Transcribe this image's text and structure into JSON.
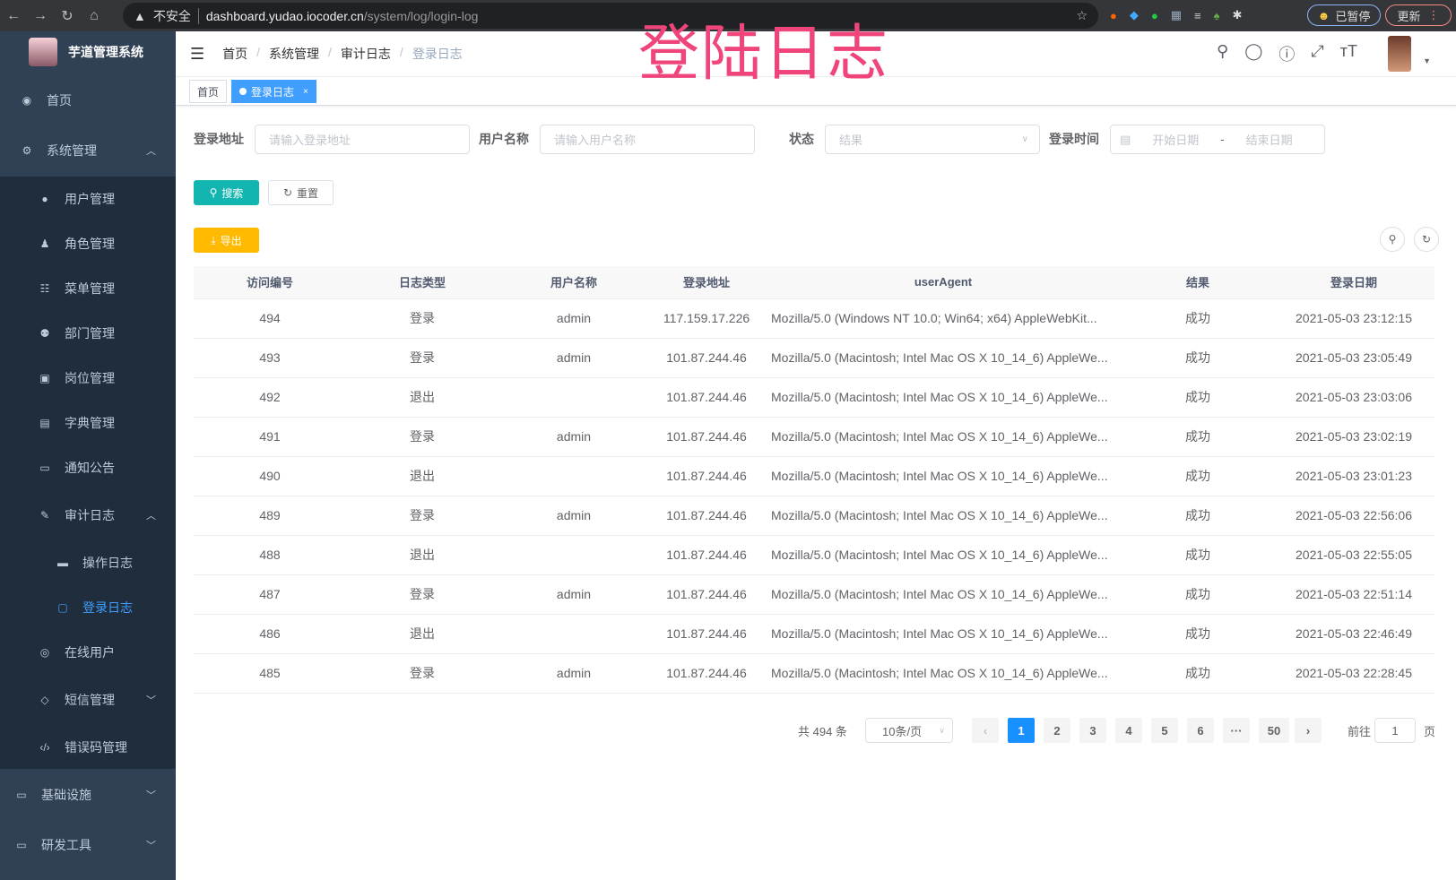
{
  "browser": {
    "security": "不安全",
    "host": "dashboard.yudao.iocoder.cn",
    "path": "/system/log/login-log",
    "profile": "已暂停",
    "update": "更新"
  },
  "overlay_title": "登陆日志",
  "sidebar": {
    "app_name": "芋道管理系统",
    "items": [
      {
        "label": "首页",
        "icon": "dashboard-icon"
      },
      {
        "label": "系统管理",
        "icon": "gear-icon",
        "expanded": true
      },
      {
        "label": "用户管理",
        "icon": "user-icon"
      },
      {
        "label": "角色管理",
        "icon": "role-icon"
      },
      {
        "label": "菜单管理",
        "icon": "tree-table-icon"
      },
      {
        "label": "部门管理",
        "icon": "tree-icon"
      },
      {
        "label": "岗位管理",
        "icon": "post-icon"
      },
      {
        "label": "字典管理",
        "icon": "dict-icon"
      },
      {
        "label": "通知公告",
        "icon": "message-icon"
      },
      {
        "label": "审计日志",
        "icon": "log-icon",
        "expanded": true
      },
      {
        "label": "操作日志",
        "icon": "form-icon"
      },
      {
        "label": "登录日志",
        "icon": "logininfor-icon",
        "active": true
      },
      {
        "label": "在线用户",
        "icon": "online-icon"
      },
      {
        "label": "短信管理",
        "icon": "validcode-icon"
      },
      {
        "label": "错误码管理",
        "icon": "code-icon"
      },
      {
        "label": "基础设施",
        "icon": "monitor-icon"
      },
      {
        "label": "研发工具",
        "icon": "tool-icon"
      }
    ]
  },
  "breadcrumb": [
    "首页",
    "系统管理",
    "审计日志",
    "登录日志"
  ],
  "tags": {
    "home": "首页",
    "current": "登录日志"
  },
  "filters": {
    "ip_label": "登录地址",
    "ip_placeholder": "请输入登录地址",
    "user_label": "用户名称",
    "user_placeholder": "请输入用户名称",
    "status_label": "状态",
    "status_placeholder": "结果",
    "time_label": "登录时间",
    "start_placeholder": "开始日期",
    "range_sep": "-",
    "end_placeholder": "结束日期"
  },
  "buttons": {
    "search": "搜索",
    "reset": "重置",
    "export": "导出"
  },
  "colors": {
    "sidebar": "#304156",
    "accent": "#409eff",
    "search": "#13b5b1",
    "export": "#ffba00",
    "overlay": "#f0457a"
  },
  "table": {
    "columns": [
      "访问编号",
      "日志类型",
      "用户名称",
      "登录地址",
      "userAgent",
      "结果",
      "登录日期"
    ],
    "rows": [
      [
        "494",
        "登录",
        "admin",
        "117.159.17.226",
        "Mozilla/5.0 (Windows NT 10.0; Win64; x64) AppleWebKit...",
        "成功",
        "2021-05-03 23:12:15"
      ],
      [
        "493",
        "登录",
        "admin",
        "101.87.244.46",
        "Mozilla/5.0 (Macintosh; Intel Mac OS X 10_14_6) AppleWe...",
        "成功",
        "2021-05-03 23:05:49"
      ],
      [
        "492",
        "退出",
        "",
        "101.87.244.46",
        "Mozilla/5.0 (Macintosh; Intel Mac OS X 10_14_6) AppleWe...",
        "成功",
        "2021-05-03 23:03:06"
      ],
      [
        "491",
        "登录",
        "admin",
        "101.87.244.46",
        "Mozilla/5.0 (Macintosh; Intel Mac OS X 10_14_6) AppleWe...",
        "成功",
        "2021-05-03 23:02:19"
      ],
      [
        "490",
        "退出",
        "",
        "101.87.244.46",
        "Mozilla/5.0 (Macintosh; Intel Mac OS X 10_14_6) AppleWe...",
        "成功",
        "2021-05-03 23:01:23"
      ],
      [
        "489",
        "登录",
        "admin",
        "101.87.244.46",
        "Mozilla/5.0 (Macintosh; Intel Mac OS X 10_14_6) AppleWe...",
        "成功",
        "2021-05-03 22:56:06"
      ],
      [
        "488",
        "退出",
        "",
        "101.87.244.46",
        "Mozilla/5.0 (Macintosh; Intel Mac OS X 10_14_6) AppleWe...",
        "成功",
        "2021-05-03 22:55:05"
      ],
      [
        "487",
        "登录",
        "admin",
        "101.87.244.46",
        "Mozilla/5.0 (Macintosh; Intel Mac OS X 10_14_6) AppleWe...",
        "成功",
        "2021-05-03 22:51:14"
      ],
      [
        "486",
        "退出",
        "",
        "101.87.244.46",
        "Mozilla/5.0 (Macintosh; Intel Mac OS X 10_14_6) AppleWe...",
        "成功",
        "2021-05-03 22:46:49"
      ],
      [
        "485",
        "登录",
        "admin",
        "101.87.244.46",
        "Mozilla/5.0 (Macintosh; Intel Mac OS X 10_14_6) AppleWe...",
        "成功",
        "2021-05-03 22:28:45"
      ]
    ]
  },
  "pagination": {
    "total": "共 494 条",
    "page_size": "10条/页",
    "pages": [
      "1",
      "2",
      "3",
      "4",
      "5",
      "6",
      "···",
      "50"
    ],
    "current": "1",
    "goto_label": "前往",
    "goto_value": "1",
    "goto_suffix": "页"
  }
}
